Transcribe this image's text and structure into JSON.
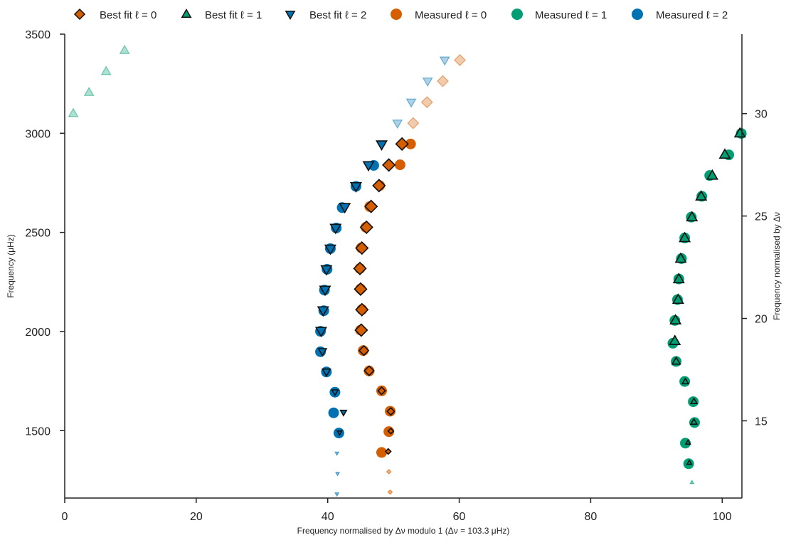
{
  "chart_data": {
    "type": "scatter",
    "title": "",
    "xlabel": "Frequency normalised by Δν modulo 1 (Δν = 103.3 μHz)",
    "ylabel": "Frequency (μHz)",
    "ylabel_right": "Frequency normalised by Δν",
    "xlim": [
      0,
      103
    ],
    "ylim": [
      1160,
      3500
    ],
    "right_ylim": [
      11.23,
      33.88
    ],
    "xticks": [
      0,
      20,
      40,
      60,
      80,
      100
    ],
    "yticks": [
      1500,
      2000,
      2500,
      3000,
      3500
    ],
    "right_yticks": [
      15,
      20,
      25,
      30
    ],
    "grid": false,
    "legend_position": "top",
    "legend": [
      {
        "label": "Best fit ℓ = 0",
        "marker": "diamond",
        "color": "#d55e00"
      },
      {
        "label": "Best fit ℓ = 1",
        "marker": "triangle-up",
        "color": "#009e73"
      },
      {
        "label": "Best fit ℓ = 2",
        "marker": "triangle-down",
        "color": "#0072b2"
      },
      {
        "label": "Measured ℓ = 0",
        "marker": "circle",
        "color": "#d55e00"
      },
      {
        "label": "Measured ℓ = 1",
        "marker": "circle",
        "color": "#009e73"
      },
      {
        "label": "Measured ℓ = 2",
        "marker": "circle",
        "color": "#0072b2"
      }
    ],
    "series": [
      {
        "name": "Best fit ℓ = 0",
        "marker": "diamond",
        "color": "#d55e00",
        "points": [
          {
            "x": 49.5,
            "y": 1190,
            "measured": false
          },
          {
            "x": 49.3,
            "y": 1293,
            "measured": false
          },
          {
            "x": 49.2,
            "y": 1395,
            "measured": true
          },
          {
            "x": 49.6,
            "y": 1498,
            "measured": true
          },
          {
            "x": 49.6,
            "y": 1597,
            "measured": true
          },
          {
            "x": 48.2,
            "y": 1701,
            "measured": true
          },
          {
            "x": 46.3,
            "y": 1802,
            "measured": true
          },
          {
            "x": 45.5,
            "y": 1904,
            "measured": true
          },
          {
            "x": 45.1,
            "y": 2007,
            "measured": true
          },
          {
            "x": 45.2,
            "y": 2110,
            "measured": true
          },
          {
            "x": 45.0,
            "y": 2214,
            "measured": true
          },
          {
            "x": 44.9,
            "y": 2318,
            "measured": true
          },
          {
            "x": 45.2,
            "y": 2421,
            "measured": true
          },
          {
            "x": 45.9,
            "y": 2526,
            "measured": true
          },
          {
            "x": 46.6,
            "y": 2631,
            "measured": true
          },
          {
            "x": 47.8,
            "y": 2736,
            "measured": true
          },
          {
            "x": 49.3,
            "y": 2840,
            "measured": true
          },
          {
            "x": 51.3,
            "y": 2946,
            "measured": true
          },
          {
            "x": 53.0,
            "y": 3051,
            "measured": false
          },
          {
            "x": 55.1,
            "y": 3157,
            "measured": false
          },
          {
            "x": 57.5,
            "y": 3263,
            "measured": false
          },
          {
            "x": 60.1,
            "y": 3369,
            "measured": false
          }
        ]
      },
      {
        "name": "Best fit ℓ = 1",
        "marker": "triangle-up",
        "color": "#009e73",
        "points": [
          {
            "x": 95.4,
            "y": 1239,
            "measured": false
          },
          {
            "x": 95.0,
            "y": 1338,
            "measured": true
          },
          {
            "x": 94.8,
            "y": 1440,
            "measured": true
          },
          {
            "x": 95.7,
            "y": 1543,
            "measured": true
          },
          {
            "x": 95.7,
            "y": 1647,
            "measured": true
          },
          {
            "x": 94.4,
            "y": 1747,
            "measured": true
          },
          {
            "x": 93.0,
            "y": 1849,
            "measured": true
          },
          {
            "x": 92.8,
            "y": 1952,
            "measured": true
          },
          {
            "x": 92.9,
            "y": 2056,
            "measured": true
          },
          {
            "x": 93.3,
            "y": 2160,
            "measured": true
          },
          {
            "x": 93.4,
            "y": 2264,
            "measured": true
          },
          {
            "x": 93.7,
            "y": 2367,
            "measured": true
          },
          {
            "x": 94.3,
            "y": 2471,
            "measured": true
          },
          {
            "x": 95.4,
            "y": 2576,
            "measured": true
          },
          {
            "x": 96.8,
            "y": 2681,
            "measured": true
          },
          {
            "x": 98.5,
            "y": 2786,
            "measured": true
          },
          {
            "x": 100.4,
            "y": 2892,
            "measured": true
          },
          {
            "x": 102.7,
            "y": 2999,
            "measured": true
          },
          {
            "x": 1.3,
            "y": 3100,
            "measured": false
          },
          {
            "x": 3.7,
            "y": 3206,
            "measured": false
          },
          {
            "x": 6.3,
            "y": 3312,
            "measured": false
          },
          {
            "x": 9.1,
            "y": 3418,
            "measured": false
          }
        ]
      },
      {
        "name": "Best fit ℓ = 2",
        "marker": "triangle-down",
        "color": "#0072b2",
        "points": [
          {
            "x": 41.4,
            "y": 1180,
            "measured": false
          },
          {
            "x": 41.5,
            "y": 1283,
            "measured": false
          },
          {
            "x": 41.4,
            "y": 1386,
            "measured": false
          },
          {
            "x": 41.8,
            "y": 1490,
            "measured": true
          },
          {
            "x": 42.4,
            "y": 1592,
            "measured": true
          },
          {
            "x": 41.1,
            "y": 1695,
            "measured": true
          },
          {
            "x": 39.8,
            "y": 1797,
            "measured": true
          },
          {
            "x": 39.2,
            "y": 1900,
            "measured": true
          },
          {
            "x": 39.0,
            "y": 2003,
            "measured": true
          },
          {
            "x": 39.3,
            "y": 2107,
            "measured": true
          },
          {
            "x": 39.6,
            "y": 2211,
            "measured": true
          },
          {
            "x": 39.8,
            "y": 2314,
            "measured": true
          },
          {
            "x": 40.4,
            "y": 2418,
            "measured": true
          },
          {
            "x": 41.2,
            "y": 2523,
            "measured": true
          },
          {
            "x": 42.6,
            "y": 2628,
            "measured": true
          },
          {
            "x": 44.3,
            "y": 2733,
            "measured": true
          },
          {
            "x": 46.2,
            "y": 2839,
            "measured": true
          },
          {
            "x": 48.2,
            "y": 2944,
            "measured": true
          },
          {
            "x": 50.6,
            "y": 3051,
            "measured": false
          },
          {
            "x": 52.7,
            "y": 3157,
            "measured": false
          },
          {
            "x": 55.2,
            "y": 3263,
            "measured": false
          },
          {
            "x": 57.8,
            "y": 3369,
            "measured": false
          }
        ]
      },
      {
        "name": "Measured ℓ = 0",
        "marker": "circle",
        "color": "#d55e00",
        "points": [
          {
            "x": 48.2,
            "y": 1390
          },
          {
            "x": 49.3,
            "y": 1495
          },
          {
            "x": 49.5,
            "y": 1598
          },
          {
            "x": 48.2,
            "y": 1701
          },
          {
            "x": 46.3,
            "y": 1801
          },
          {
            "x": 45.4,
            "y": 1904
          },
          {
            "x": 45.0,
            "y": 2007
          },
          {
            "x": 45.2,
            "y": 2111
          },
          {
            "x": 45.0,
            "y": 2215
          },
          {
            "x": 44.9,
            "y": 2318
          },
          {
            "x": 45.1,
            "y": 2422
          },
          {
            "x": 45.8,
            "y": 2526
          },
          {
            "x": 46.4,
            "y": 2630
          },
          {
            "x": 47.9,
            "y": 2736
          },
          {
            "x": 51.0,
            "y": 2841
          },
          {
            "x": 52.6,
            "y": 2946
          }
        ]
      },
      {
        "name": "Measured ℓ = 1",
        "marker": "circle",
        "color": "#009e73",
        "points": [
          {
            "x": 94.9,
            "y": 1333
          },
          {
            "x": 94.4,
            "y": 1437
          },
          {
            "x": 95.8,
            "y": 1541
          },
          {
            "x": 95.6,
            "y": 1646
          },
          {
            "x": 94.3,
            "y": 1748
          },
          {
            "x": 93.0,
            "y": 1849
          },
          {
            "x": 92.5,
            "y": 1941
          },
          {
            "x": 92.8,
            "y": 2056
          },
          {
            "x": 93.2,
            "y": 2161
          },
          {
            "x": 93.4,
            "y": 2265
          },
          {
            "x": 93.8,
            "y": 2368
          },
          {
            "x": 94.3,
            "y": 2472
          },
          {
            "x": 95.3,
            "y": 2577
          },
          {
            "x": 96.9,
            "y": 2682
          },
          {
            "x": 98.1,
            "y": 2787
          },
          {
            "x": 101.0,
            "y": 2891
          },
          {
            "x": 102.9,
            "y": 2999
          }
        ]
      },
      {
        "name": "Measured ℓ = 2",
        "marker": "circle",
        "color": "#0072b2",
        "points": [
          {
            "x": 41.7,
            "y": 1488
          },
          {
            "x": 40.9,
            "y": 1590
          },
          {
            "x": 41.1,
            "y": 1694
          },
          {
            "x": 39.8,
            "y": 1796
          },
          {
            "x": 38.9,
            "y": 1898
          },
          {
            "x": 38.9,
            "y": 2001
          },
          {
            "x": 39.4,
            "y": 2105
          },
          {
            "x": 39.5,
            "y": 2209
          },
          {
            "x": 39.9,
            "y": 2314
          },
          {
            "x": 40.4,
            "y": 2418
          },
          {
            "x": 41.3,
            "y": 2522
          },
          {
            "x": 42.2,
            "y": 2625
          },
          {
            "x": 44.3,
            "y": 2732
          },
          {
            "x": 47.0,
            "y": 2838
          }
        ]
      }
    ]
  }
}
